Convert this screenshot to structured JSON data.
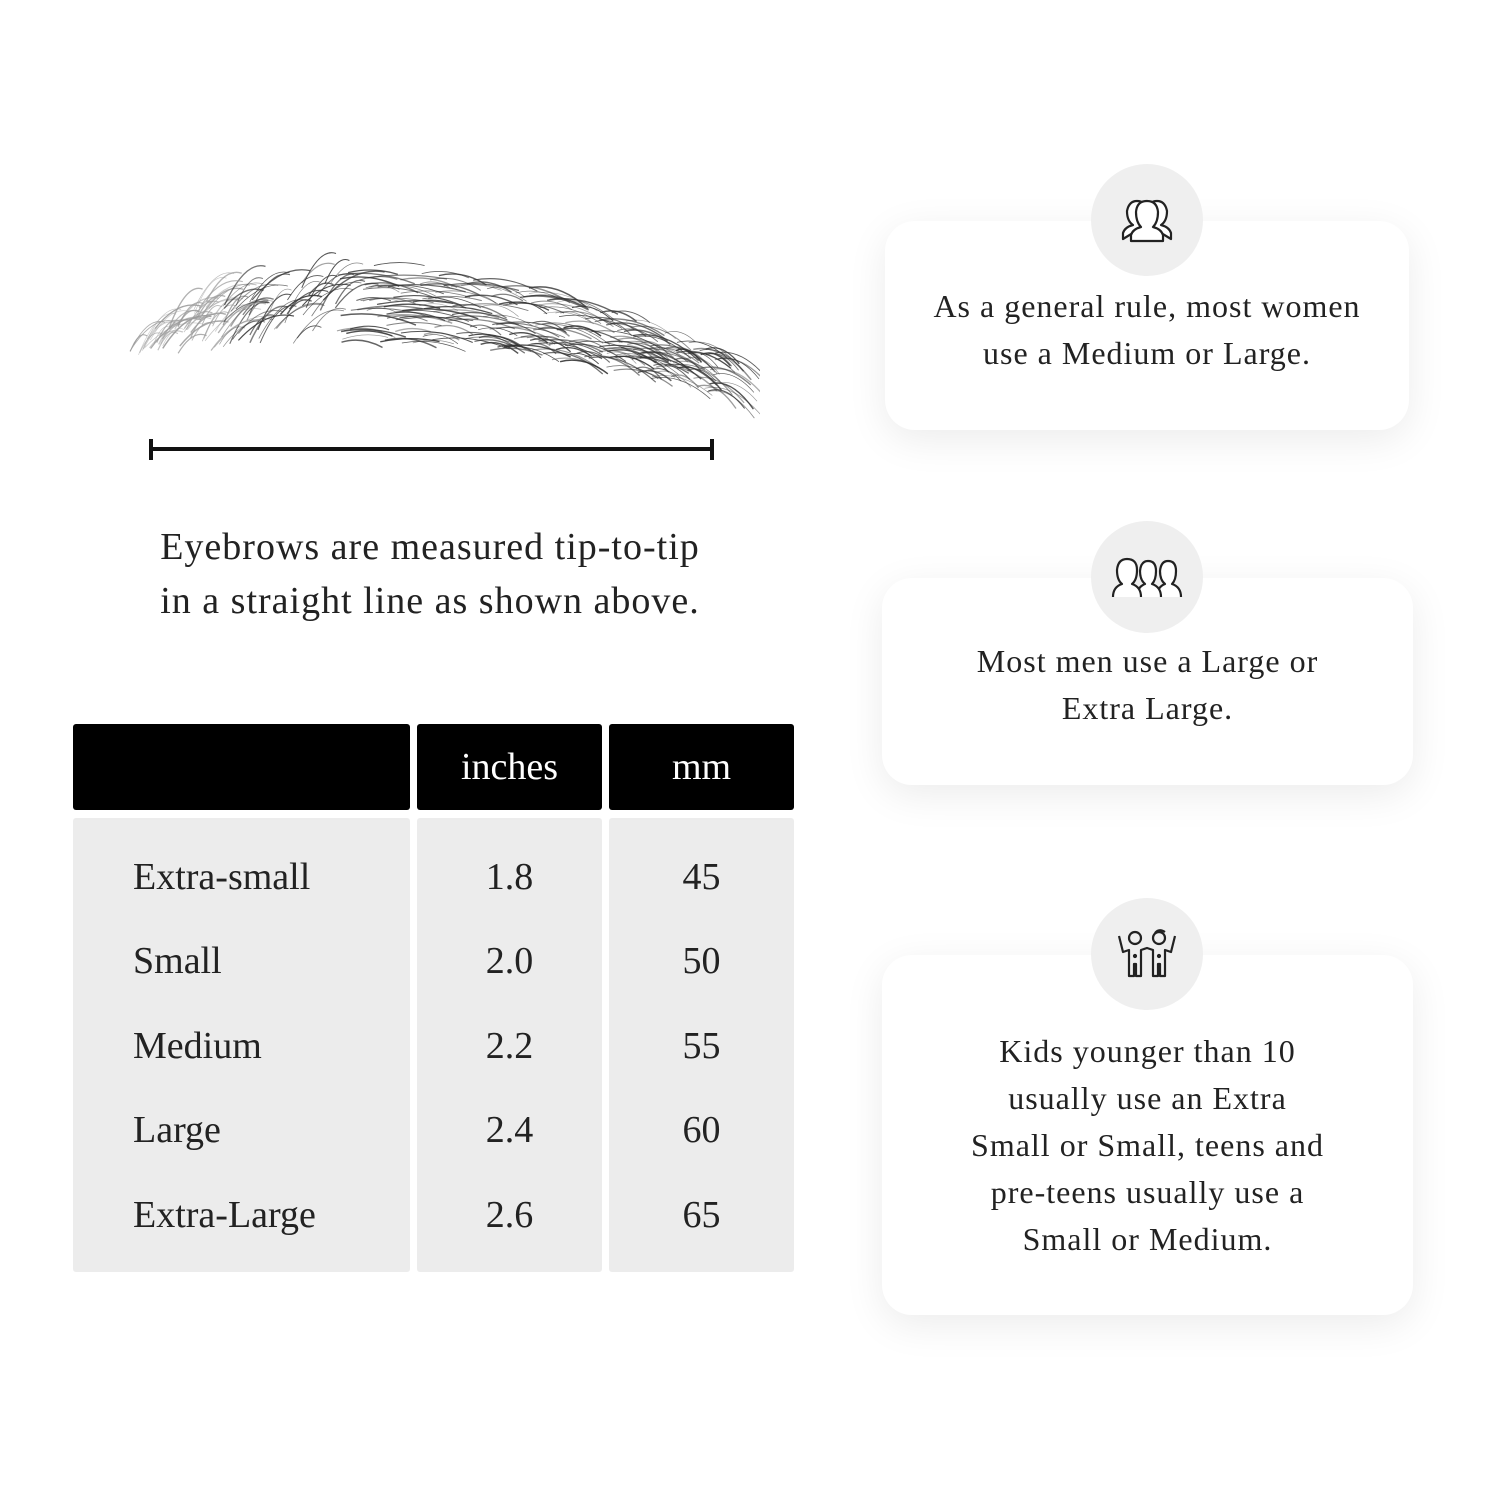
{
  "measurement": {
    "caption_line1": "Eyebrows are measured tip-to-tip",
    "caption_line2": "in a straight line as shown above."
  },
  "table": {
    "headers": [
      "",
      "inches",
      "mm"
    ],
    "rows": [
      {
        "size": "Extra-small",
        "inches": "1.8",
        "mm": "45"
      },
      {
        "size": "Small",
        "inches": "2.0",
        "mm": "50"
      },
      {
        "size": "Medium",
        "inches": "2.2",
        "mm": "55"
      },
      {
        "size": "Large",
        "inches": "2.4",
        "mm": "60"
      },
      {
        "size": "Extra-Large",
        "inches": "2.6",
        "mm": "65"
      }
    ]
  },
  "cards": [
    {
      "icon": "women-group-icon",
      "lines": [
        "As a general rule, most women",
        "use a Medium or Large."
      ]
    },
    {
      "icon": "men-group-icon",
      "lines": [
        "Most men use a Large or",
        "Extra Large."
      ]
    },
    {
      "icon": "kids-icon",
      "lines": [
        "Kids younger than 10",
        "usually use an Extra",
        "Small or Small, teens and",
        "pre-teens usually use a",
        "Small or Medium."
      ]
    }
  ]
}
